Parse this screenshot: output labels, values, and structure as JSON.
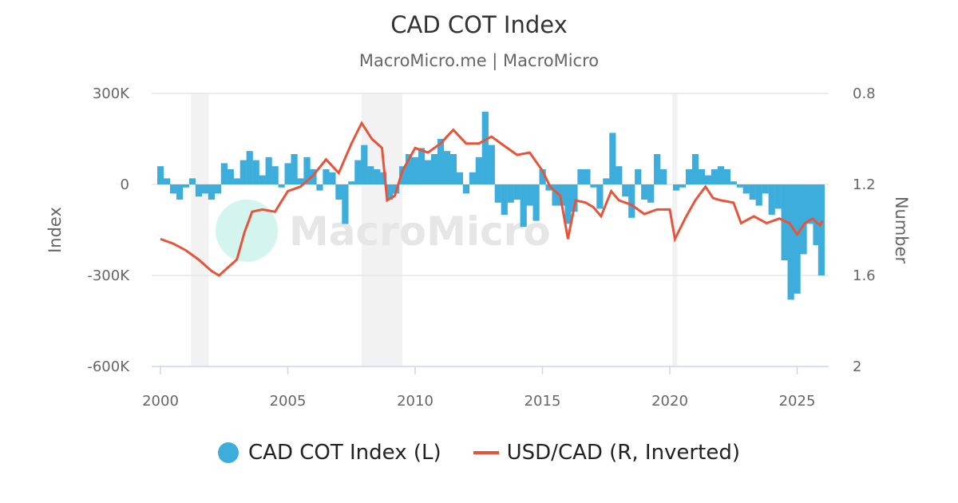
{
  "chart_data": {
    "type": "bar+line",
    "title": "CAD COT Index",
    "subtitle": "MacroMicro.me | MacroMicro",
    "watermark": "MacroMicro",
    "x_ticks": [
      "2000",
      "2005",
      "2010",
      "2015",
      "2020",
      "2025"
    ],
    "xlim": [
      2000,
      2026
    ],
    "left_axis": {
      "label": "Index",
      "ticks": [
        "300K",
        "0",
        "-300K",
        "-600K"
      ],
      "range": [
        -600,
        300
      ],
      "unit": "K"
    },
    "right_axis": {
      "label": "Number",
      "ticks": [
        "0.8",
        "1.2",
        "1.6",
        "2"
      ],
      "range": [
        0.8,
        2
      ],
      "inverted": true
    },
    "grid": "horizontal",
    "legend_position": "bottom",
    "recessions": [
      [
        2001.2,
        2001.9
      ],
      [
        2007.9,
        2009.5
      ],
      [
        2020.1,
        2020.3
      ]
    ],
    "series": [
      {
        "name": "CAD COT Index (L)",
        "type": "bar",
        "axis": "left",
        "color": "#3daedb",
        "x": [
          2000.0,
          2000.25,
          2000.5,
          2000.75,
          2001.0,
          2001.25,
          2001.5,
          2001.75,
          2002.0,
          2002.25,
          2002.5,
          2002.75,
          2003.0,
          2003.25,
          2003.5,
          2003.75,
          2004.0,
          2004.25,
          2004.5,
          2004.75,
          2005.0,
          2005.25,
          2005.5,
          2005.75,
          2006.0,
          2006.25,
          2006.5,
          2006.75,
          2007.0,
          2007.25,
          2007.5,
          2007.75,
          2008.0,
          2008.25,
          2008.5,
          2008.75,
          2009.0,
          2009.25,
          2009.5,
          2009.75,
          2010.0,
          2010.25,
          2010.5,
          2010.75,
          2011.0,
          2011.25,
          2011.5,
          2011.75,
          2012.0,
          2012.25,
          2012.5,
          2012.75,
          2013.0,
          2013.25,
          2013.5,
          2013.75,
          2014.0,
          2014.25,
          2014.5,
          2014.75,
          2015.0,
          2015.25,
          2015.5,
          2015.75,
          2016.0,
          2016.25,
          2016.5,
          2016.75,
          2017.0,
          2017.25,
          2017.5,
          2017.75,
          2018.0,
          2018.25,
          2018.5,
          2018.75,
          2019.0,
          2019.25,
          2019.5,
          2019.75,
          2020.0,
          2020.25,
          2020.5,
          2020.75,
          2021.0,
          2021.25,
          2021.5,
          2021.75,
          2022.0,
          2022.25,
          2022.5,
          2022.75,
          2023.0,
          2023.25,
          2023.5,
          2023.75,
          2024.0,
          2024.25,
          2024.5,
          2024.75,
          2025.0,
          2025.25,
          2025.5,
          2025.75,
          2025.95
        ],
        "values": [
          60,
          20,
          -30,
          -50,
          -10,
          20,
          -40,
          -30,
          -50,
          -30,
          70,
          50,
          20,
          80,
          110,
          80,
          30,
          90,
          60,
          -10,
          70,
          100,
          20,
          90,
          50,
          -20,
          50,
          40,
          -50,
          -130,
          10,
          80,
          130,
          60,
          50,
          40,
          -50,
          -30,
          60,
          100,
          90,
          120,
          80,
          100,
          150,
          110,
          100,
          40,
          -30,
          40,
          90,
          240,
          130,
          -60,
          -100,
          -60,
          -50,
          -140,
          -70,
          -120,
          50,
          -20,
          -70,
          -70,
          -130,
          -90,
          50,
          50,
          -10,
          -80,
          20,
          170,
          60,
          -40,
          -110,
          50,
          -50,
          -60,
          100,
          50,
          0,
          -20,
          -10,
          50,
          100,
          50,
          30,
          50,
          60,
          50,
          10,
          -10,
          -30,
          -50,
          -70,
          -30,
          -100,
          -80,
          -250,
          -380,
          -360,
          -230,
          -130,
          -200,
          -300
        ]
      },
      {
        "name": "USD/CAD (R, Inverted)",
        "type": "line",
        "axis": "right",
        "color": "#e8543a",
        "x": [
          2000.0,
          2000.5,
          2001.0,
          2001.5,
          2002.0,
          2002.3,
          2002.7,
          2003.0,
          2003.3,
          2003.6,
          2004.0,
          2004.5,
          2005.0,
          2005.5,
          2006.0,
          2006.5,
          2007.0,
          2007.5,
          2007.9,
          2008.3,
          2008.7,
          2008.9,
          2009.2,
          2009.5,
          2010.0,
          2010.5,
          2011.0,
          2011.5,
          2012.0,
          2012.5,
          2013.0,
          2013.5,
          2014.0,
          2014.5,
          2015.0,
          2015.3,
          2015.7,
          2016.0,
          2016.3,
          2016.7,
          2017.0,
          2017.3,
          2017.7,
          2018.0,
          2018.5,
          2019.0,
          2019.5,
          2020.0,
          2020.2,
          2020.6,
          2021.0,
          2021.4,
          2021.7,
          2022.0,
          2022.5,
          2022.8,
          2023.3,
          2023.8,
          2024.3,
          2024.7,
          2025.0,
          2025.3,
          2025.6,
          2025.9,
          2026.0
        ],
        "values": [
          1.44,
          1.46,
          1.49,
          1.53,
          1.58,
          1.6,
          1.56,
          1.53,
          1.41,
          1.32,
          1.31,
          1.32,
          1.23,
          1.21,
          1.16,
          1.09,
          1.15,
          1.02,
          0.93,
          1.0,
          1.04,
          1.27,
          1.25,
          1.14,
          1.04,
          1.06,
          1.02,
          0.96,
          1.02,
          1.02,
          0.99,
          1.03,
          1.07,
          1.06,
          1.14,
          1.21,
          1.25,
          1.44,
          1.27,
          1.28,
          1.3,
          1.34,
          1.23,
          1.27,
          1.29,
          1.33,
          1.31,
          1.31,
          1.44,
          1.35,
          1.27,
          1.21,
          1.26,
          1.27,
          1.28,
          1.37,
          1.34,
          1.37,
          1.35,
          1.37,
          1.42,
          1.37,
          1.35,
          1.38,
          1.36
        ]
      }
    ]
  }
}
